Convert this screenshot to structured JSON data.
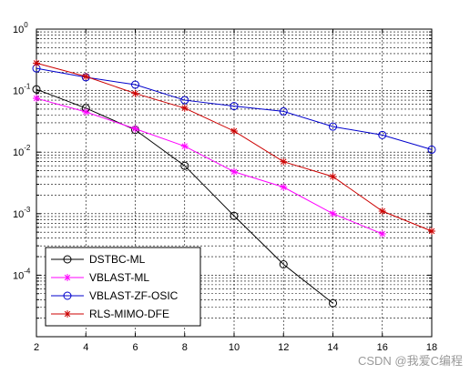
{
  "chart_data": {
    "type": "line",
    "title": "",
    "xlabel": "",
    "ylabel": "",
    "y_scale": "log",
    "xlim": [
      2,
      18
    ],
    "ylim": [
      1e-05,
      1
    ],
    "x_ticks": [
      2,
      4,
      6,
      8,
      10,
      12,
      14,
      16,
      18
    ],
    "y_ticks": [
      {
        "value": 1,
        "base": "10",
        "exp": "0"
      },
      {
        "value": 0.1,
        "base": "10",
        "exp": "-1"
      },
      {
        "value": 0.01,
        "base": "10",
        "exp": "-2"
      },
      {
        "value": 0.001,
        "base": "10",
        "exp": "-3"
      },
      {
        "value": 0.0001,
        "base": "10",
        "exp": "-4"
      }
    ],
    "grid": true,
    "legend_position": "bottom-left",
    "series": [
      {
        "name": "DSTBC-ML",
        "color": "#000000",
        "marker": "circle",
        "x": [
          2,
          4,
          6,
          8,
          10,
          12,
          14
        ],
        "y": [
          0.105,
          0.052,
          0.023,
          0.006,
          0.00092,
          0.00015,
          3.5e-05
        ]
      },
      {
        "name": "VBLAST-ML",
        "color": "#ff00ff",
        "marker": "star",
        "x": [
          2,
          4,
          6,
          8,
          10,
          12,
          14,
          16
        ],
        "y": [
          0.075,
          0.045,
          0.024,
          0.0125,
          0.0048,
          0.0027,
          0.001,
          0.00047
        ]
      },
      {
        "name": "VBLAST-ZF-OSIC",
        "color": "#0000cc",
        "marker": "circle",
        "x": [
          2,
          4,
          6,
          8,
          10,
          12,
          14,
          16,
          18
        ],
        "y": [
          0.23,
          0.165,
          0.125,
          0.07,
          0.056,
          0.046,
          0.026,
          0.019,
          0.011
        ]
      },
      {
        "name": "RLS-MIMO-DFE",
        "color": "#cc0000",
        "marker": "star",
        "x": [
          2,
          4,
          6,
          8,
          10,
          12,
          14,
          16,
          18
        ],
        "y": [
          0.28,
          0.17,
          0.09,
          0.052,
          0.022,
          0.007,
          0.004,
          0.0011,
          0.00052
        ]
      }
    ]
  },
  "watermark": "CSDN @我爱C编程"
}
